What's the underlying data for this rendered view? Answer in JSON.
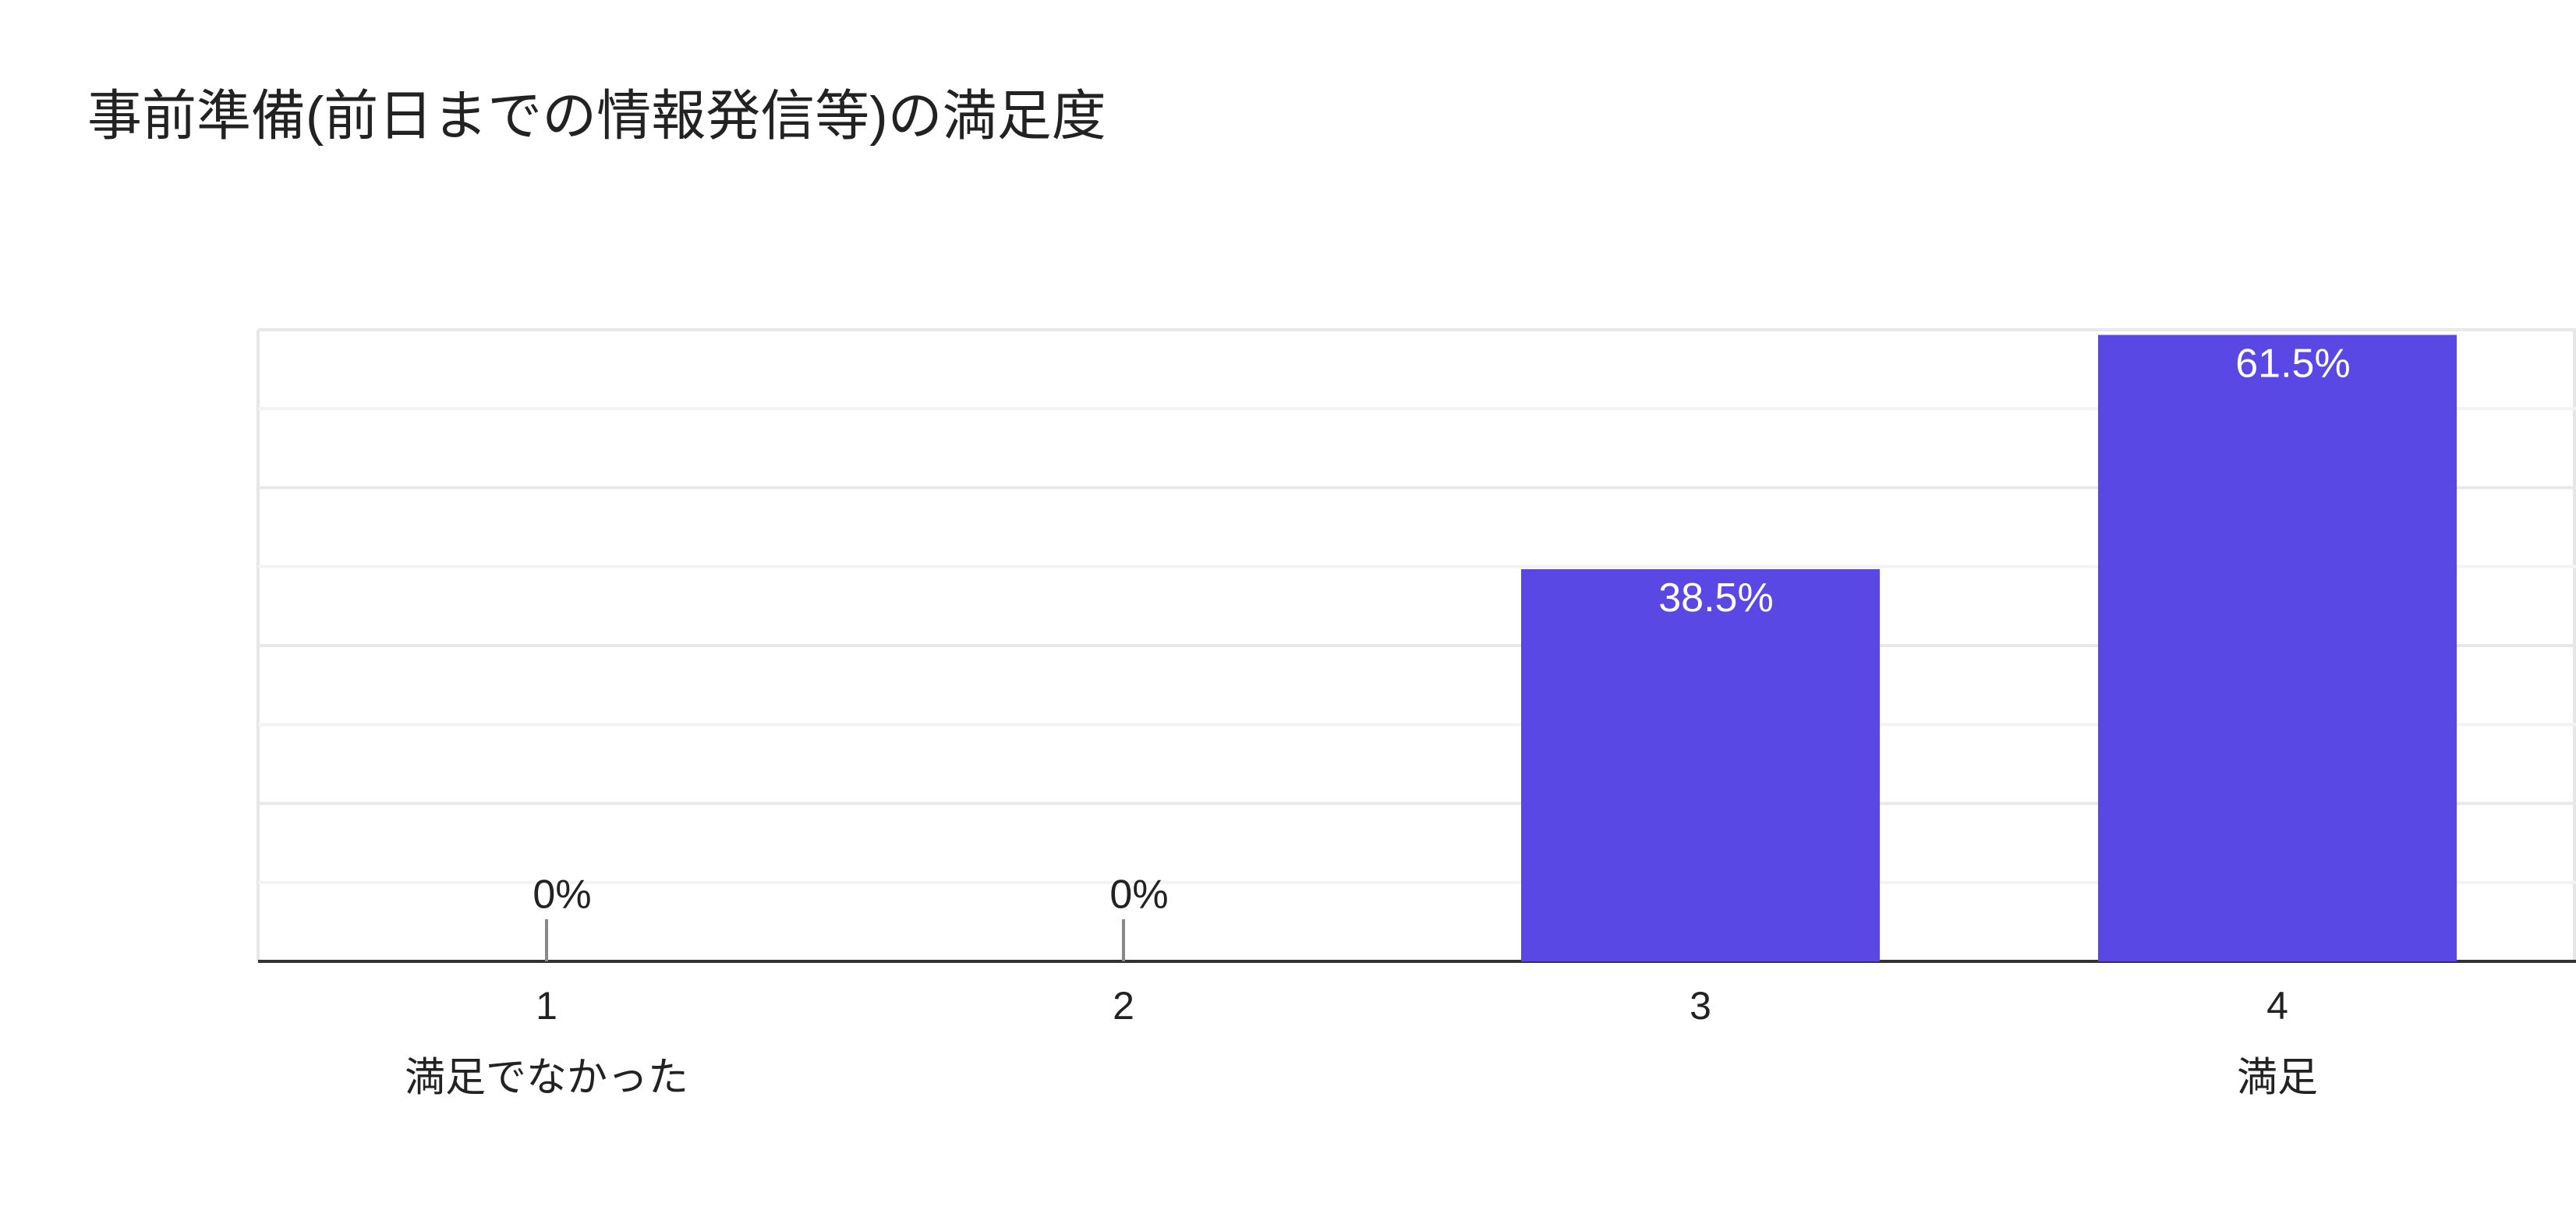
{
  "chart_data": {
    "type": "bar",
    "title": "事前準備(前日までの情報発信等)の満足度",
    "categories": [
      "1",
      "2",
      "3",
      "4"
    ],
    "category_sublabels": [
      "満足でなかった",
      null,
      null,
      "満足"
    ],
    "values": [
      0,
      0,
      38.5,
      61.5
    ],
    "value_labels": [
      "0%",
      "0%",
      "38.5%",
      "61.5%"
    ],
    "color": "#5a48e4",
    "ylim": [
      0,
      62
    ],
    "yticks": [
      0,
      7.75,
      15.5,
      23.25,
      31,
      38.75,
      46.5,
      54.25,
      62
    ],
    "ytick_labels": false,
    "grid": true
  }
}
